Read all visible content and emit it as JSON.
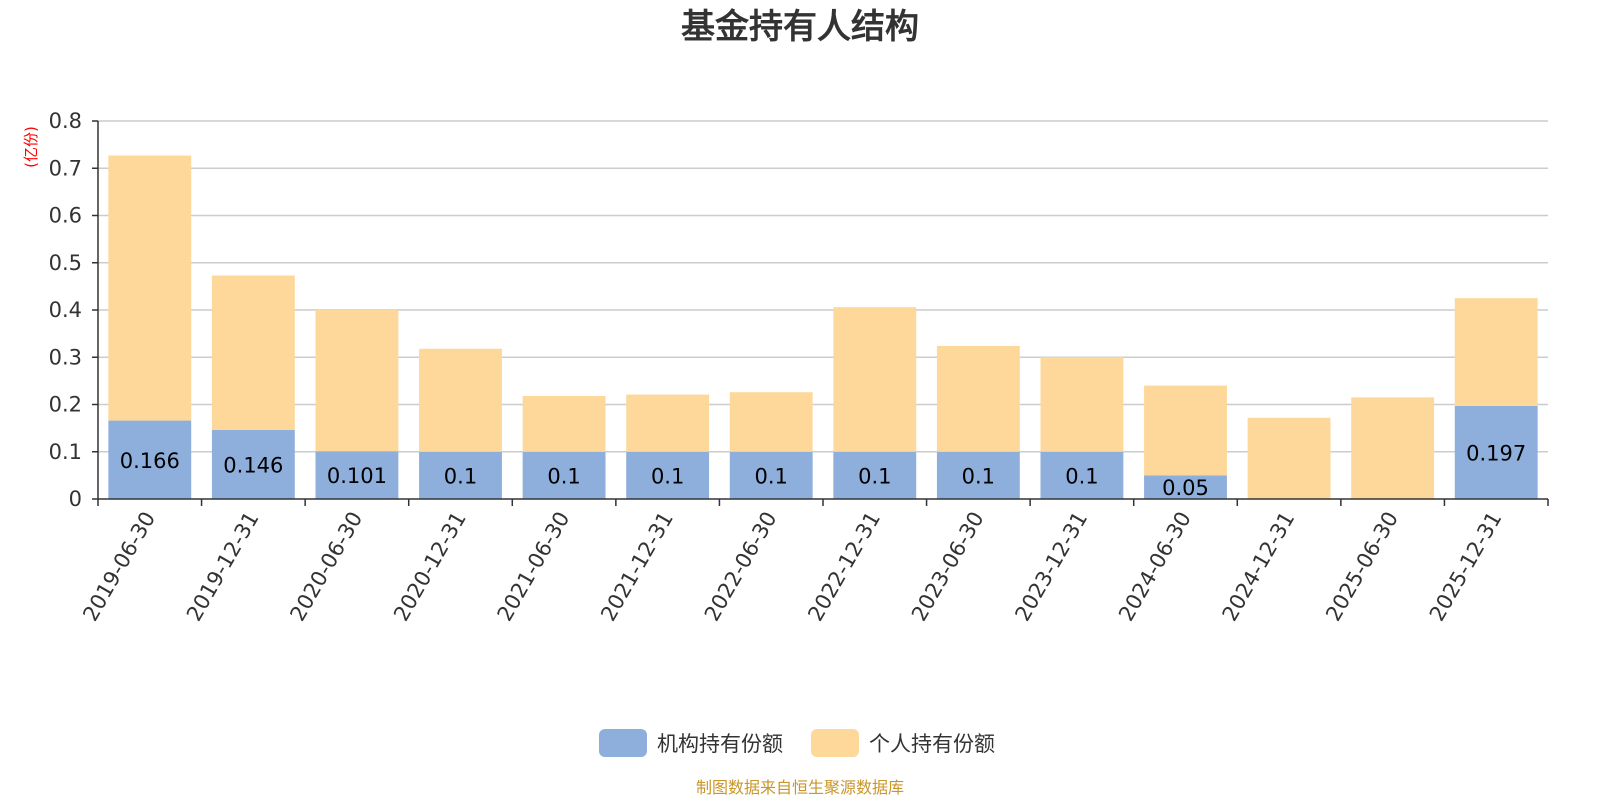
{
  "chart_data": {
    "type": "bar",
    "stacked": true,
    "title": "基金持有人结构",
    "y_unit": "(亿份)",
    "ylim": [
      0,
      0.8
    ],
    "y_ticks": [
      "0",
      "0.1",
      "0.2",
      "0.3",
      "0.4",
      "0.5",
      "0.6",
      "0.7",
      "0.8"
    ],
    "grid": true,
    "legend_position": "bottom-center",
    "categories": [
      "2019-06-30",
      "2019-12-31",
      "2020-06-30",
      "2020-12-31",
      "2021-06-30",
      "2021-12-31",
      "2022-06-30",
      "2022-12-31",
      "2023-06-30",
      "2023-12-31",
      "2024-06-30",
      "2024-12-31",
      "2025-06-30",
      "2025-12-31"
    ],
    "series": [
      {
        "name": "机构持有份额",
        "color": "#8eaedc",
        "values": [
          0.166,
          0.146,
          0.101,
          0.1,
          0.1,
          0.1,
          0.1,
          0.1,
          0.1,
          0.1,
          0.05,
          0,
          0,
          0.197
        ],
        "labels": [
          "0.166",
          "0.146",
          "0.101",
          "0.1",
          "0.1",
          "0.1",
          "0.1",
          "0.1",
          "0.1",
          "0.1",
          "0.05",
          "",
          "",
          "0.197"
        ]
      },
      {
        "name": "个人持有份额",
        "color": "#fed89a",
        "values": [
          0.561,
          0.327,
          0.299,
          0.218,
          0.118,
          0.121,
          0.126,
          0.306,
          0.224,
          0.2,
          0.19,
          0.172,
          0.215,
          0.228
        ]
      }
    ],
    "source_note": "制图数据来自恒生聚源数据库"
  },
  "colors": {
    "axis": "#333333",
    "grid": "#cccccc"
  }
}
